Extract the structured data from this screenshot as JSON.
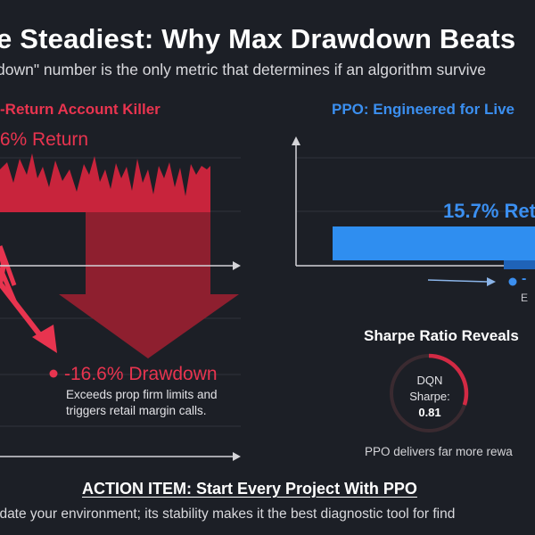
{
  "header": {
    "title": "e Steadiest: Why Max Drawdown Beats",
    "subtitle": "down\" number is the only metric that determines if an algorithm survive"
  },
  "dqn_panel": {
    "heading": "-Return Account Killer",
    "return_label": ".6% Return",
    "drawdown_label": "-16.6% Drawdown",
    "drawdown_desc": "Exceeds prop firm limits and triggers retail margin calls.",
    "color": "#e8344f"
  },
  "ppo_panel": {
    "heading": "PPO: Engineered for Live",
    "return_label": "15.7% Ret",
    "drawdown_fragment": "-",
    "small_label": "E",
    "color": "#3b8ff0"
  },
  "sharpe": {
    "heading": "Sharpe Ratio Reveals",
    "gauge_line1": "DQN",
    "gauge_line2": "Sharpe:",
    "gauge_value": "0.81",
    "gauge_fill_fraction": 0.3,
    "note": "PPO delivers far more rewa"
  },
  "footer": {
    "action_item": "ACTION ITEM: Start Every Project With PPO",
    "text": "idate your environment; its stability makes it the best diagnostic tool for find"
  }
}
